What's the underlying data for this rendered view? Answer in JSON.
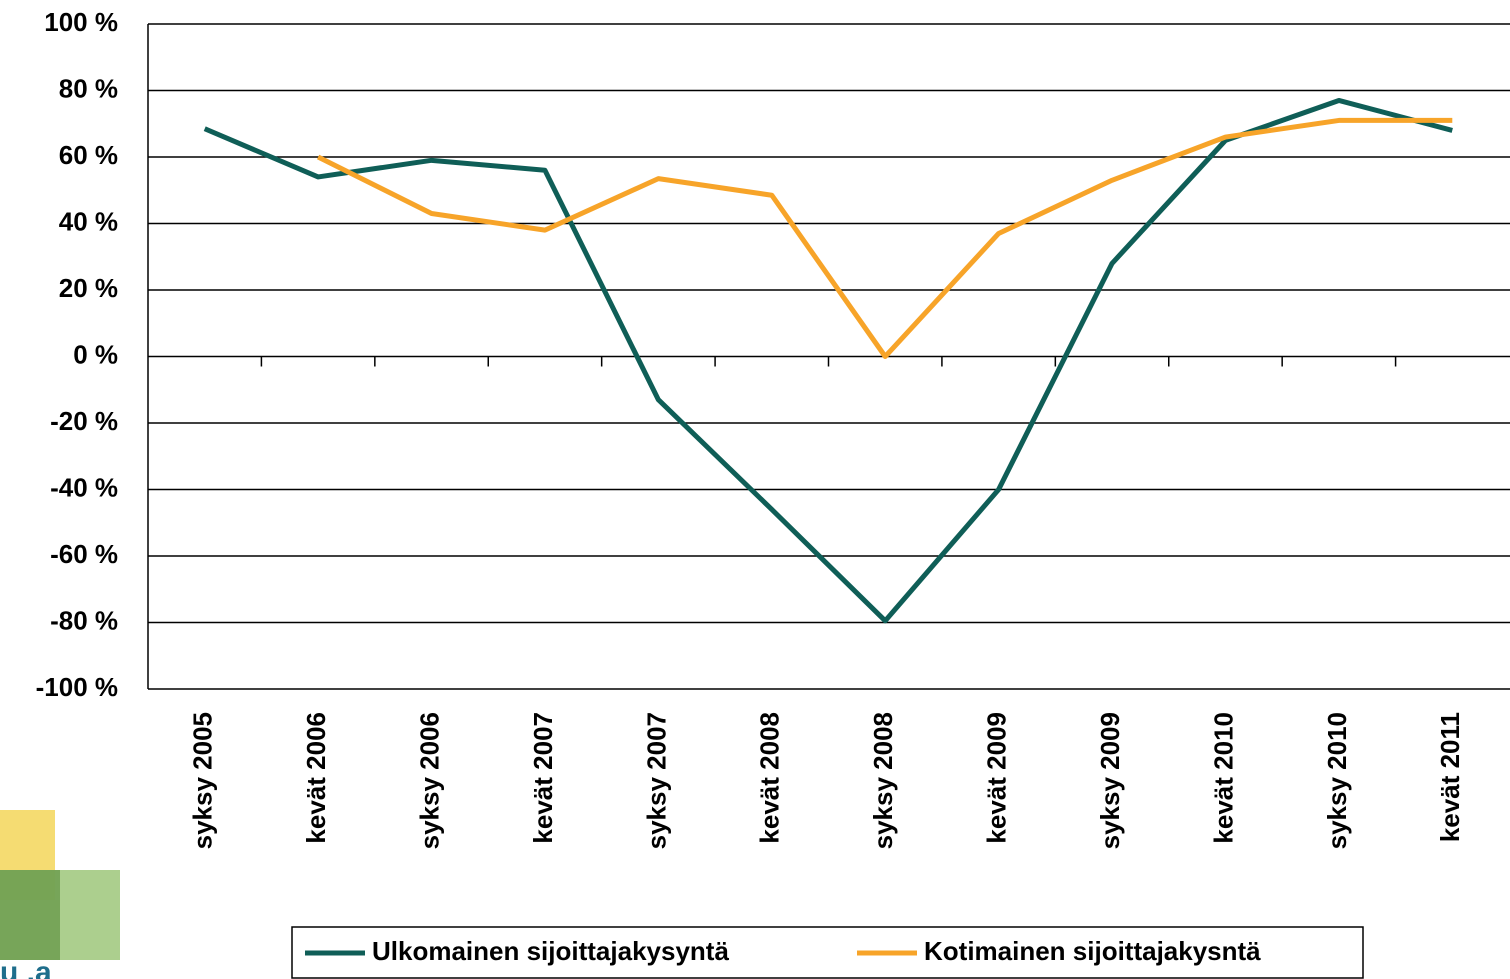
{
  "chart_data": {
    "type": "line",
    "categories": [
      "syksy 2005",
      "kevät 2006",
      "syksy 2006",
      "kevät 2007",
      "syksy 2007",
      "kevät 2008",
      "syksy 2008",
      "kevät 2009",
      "syksy 2009",
      "kevät 2010",
      "syksy 2010",
      "kevät 2011"
    ],
    "series": [
      {
        "name": "Ulkomainen sijoittajakysyntä",
        "color": "#0f5e57",
        "values": [
          68.5,
          54,
          59,
          56,
          -13,
          -46,
          -79.5,
          -40,
          28,
          65,
          77,
          68
        ]
      },
      {
        "name": "Kotimainen sijoittajakysntä",
        "color": "#f7a429",
        "values": [
          null,
          60,
          43,
          38,
          53.5,
          48.5,
          0,
          37,
          53,
          66,
          71,
          71
        ]
      }
    ],
    "ylim": [
      -100,
      100
    ],
    "yticks": [
      {
        "value": -100,
        "label": "-100 %"
      },
      {
        "value": -80,
        "label": "-80 %"
      },
      {
        "value": -60,
        "label": "-60 %"
      },
      {
        "value": -40,
        "label": "-40 %"
      },
      {
        "value": -20,
        "label": "-20 %"
      },
      {
        "value": 0,
        "label": "0 %"
      },
      {
        "value": 20,
        "label": "20 %"
      },
      {
        "value": 40,
        "label": "40 %"
      },
      {
        "value": 60,
        "label": "60 %"
      },
      {
        "value": 80,
        "label": "80 %"
      },
      {
        "value": 100,
        "label": "100 %"
      }
    ],
    "grid": true,
    "legend": "bottom"
  }
}
